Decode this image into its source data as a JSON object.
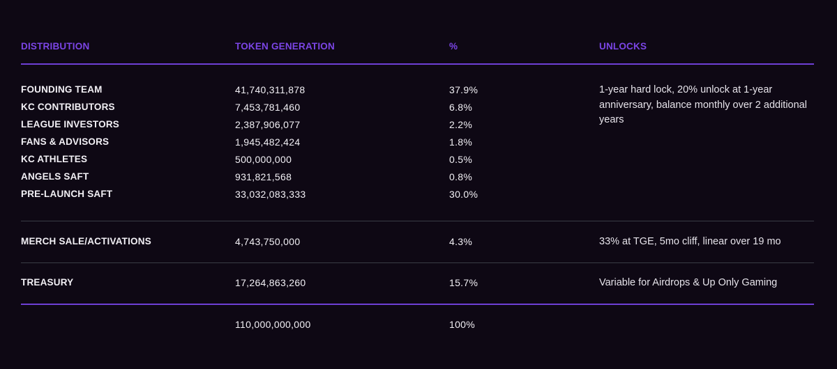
{
  "header": {
    "distribution": "DISTRIBUTION",
    "token_generation": "TOKEN GENERATION",
    "percent": "%",
    "unlocks": "UNLOCKS"
  },
  "group1": {
    "rows": [
      {
        "name": "FOUNDING TEAM",
        "tokens": "41,740,311,878",
        "pct": "37.9%"
      },
      {
        "name": "KC CONTRIBUTORS",
        "tokens": "7,453,781,460",
        "pct": "6.8%"
      },
      {
        "name": "LEAGUE INVESTORS",
        "tokens": "2,387,906,077",
        "pct": "2.2%"
      },
      {
        "name": "FANS & ADVISORS",
        "tokens": "1,945,482,424",
        "pct": "1.8%"
      },
      {
        "name": "KC ATHLETES",
        "tokens": "500,000,000",
        "pct": "0.5%"
      },
      {
        "name": "ANGELS SAFT",
        "tokens": "931,821,568",
        "pct": "0.8%"
      },
      {
        "name": "PRE-LAUNCH SAFT",
        "tokens": "33,032,083,333",
        "pct": "30.0%"
      }
    ],
    "unlock": "1-year hard lock, 20% unlock at 1-year anniversary, balance monthly over 2 additional years"
  },
  "merch": {
    "name": "MERCH SALE/ACTIVATIONS",
    "tokens": "4,743,750,000",
    "pct": "4.3%",
    "unlock": "33% at TGE, 5mo cliff, linear over 19 mo"
  },
  "treasury": {
    "name": "TREASURY",
    "tokens": "17,264,863,260",
    "pct": "15.7%",
    "unlock": "Variable for Airdrops & Up Only Gaming"
  },
  "total": {
    "tokens": "110,000,000,000",
    "pct": "100%"
  },
  "colors": {
    "background": "#0e0814",
    "accent": "#7b45e6",
    "text": "#f2f0f5",
    "divider": "#3a3d45"
  }
}
